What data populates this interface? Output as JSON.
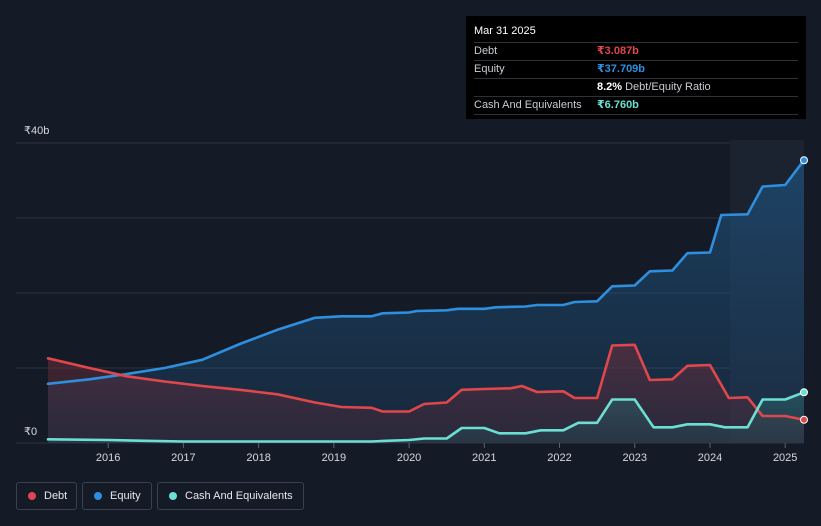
{
  "tooltip": {
    "date": "Mar 31 2025",
    "rows": [
      {
        "label": "Debt",
        "value": "₹3.087b",
        "color": "#e0474c"
      },
      {
        "label": "Equity",
        "value": "₹37.709b",
        "color": "#2f8fdf"
      },
      {
        "label": "",
        "value": "8.2%",
        "sub": "Debt/Equity Ratio",
        "color": "#ffffff"
      },
      {
        "label": "Cash And Equivalents",
        "value": "₹6.760b",
        "color": "#6be0d2"
      }
    ]
  },
  "legend": [
    {
      "label": "Debt",
      "color": "#e0474c"
    },
    {
      "label": "Equity",
      "color": "#2f8fdf"
    },
    {
      "label": "Cash And Equivalents",
      "color": "#6be0d2"
    }
  ],
  "chart_data": {
    "type": "area",
    "y_tick_labels": [
      "₹40b",
      "₹0"
    ],
    "y_tick_values": [
      40,
      0
    ],
    "ylim": [
      0,
      40
    ],
    "xlim": [
      2015.2,
      2025.25
    ],
    "x_ticks": [
      "2016",
      "2017",
      "2018",
      "2019",
      "2020",
      "2021",
      "2022",
      "2023",
      "2024",
      "2025"
    ],
    "x_tick_values": [
      2016,
      2017,
      2018,
      2019,
      2020,
      2021,
      2022,
      2023,
      2024,
      2025
    ],
    "grid": true,
    "legend_position": "bottom-left",
    "series": [
      {
        "name": "Equity",
        "color": "#2f8fdf",
        "points": [
          [
            2015.2,
            7.9
          ],
          [
            2015.75,
            8.5
          ],
          [
            2016.25,
            9.2
          ],
          [
            2016.75,
            10.0
          ],
          [
            2017.25,
            11.1
          ],
          [
            2017.75,
            13.2
          ],
          [
            2018.25,
            15.1
          ],
          [
            2018.75,
            16.7
          ],
          [
            2019.1,
            16.9
          ],
          [
            2019.5,
            16.9
          ],
          [
            2019.65,
            17.3
          ],
          [
            2020.0,
            17.4
          ],
          [
            2020.1,
            17.6
          ],
          [
            2020.5,
            17.7
          ],
          [
            2020.65,
            17.9
          ],
          [
            2021.0,
            17.9
          ],
          [
            2021.15,
            18.1
          ],
          [
            2021.55,
            18.2
          ],
          [
            2021.7,
            18.4
          ],
          [
            2022.05,
            18.4
          ],
          [
            2022.2,
            18.8
          ],
          [
            2022.5,
            18.9
          ],
          [
            2022.7,
            20.9
          ],
          [
            2023.0,
            21.0
          ],
          [
            2023.2,
            22.9
          ],
          [
            2023.5,
            23.0
          ],
          [
            2023.7,
            25.3
          ],
          [
            2024.0,
            25.4
          ],
          [
            2024.15,
            30.4
          ],
          [
            2024.5,
            30.5
          ],
          [
            2024.7,
            34.2
          ],
          [
            2025.0,
            34.4
          ],
          [
            2025.25,
            37.7
          ]
        ]
      },
      {
        "name": "Debt",
        "color": "#e0474c",
        "points": [
          [
            2015.2,
            11.3
          ],
          [
            2015.75,
            10.0
          ],
          [
            2016.25,
            8.9
          ],
          [
            2016.75,
            8.2
          ],
          [
            2017.25,
            7.6
          ],
          [
            2017.75,
            7.1
          ],
          [
            2018.25,
            6.5
          ],
          [
            2018.75,
            5.4
          ],
          [
            2019.1,
            4.8
          ],
          [
            2019.5,
            4.7
          ],
          [
            2019.65,
            4.2
          ],
          [
            2020.0,
            4.2
          ],
          [
            2020.2,
            5.2
          ],
          [
            2020.5,
            5.4
          ],
          [
            2020.7,
            7.1
          ],
          [
            2021.0,
            7.2
          ],
          [
            2021.35,
            7.3
          ],
          [
            2021.5,
            7.6
          ],
          [
            2021.7,
            6.8
          ],
          [
            2022.05,
            6.9
          ],
          [
            2022.2,
            6.0
          ],
          [
            2022.5,
            6.0
          ],
          [
            2022.7,
            13.0
          ],
          [
            2023.0,
            13.1
          ],
          [
            2023.2,
            8.4
          ],
          [
            2023.5,
            8.5
          ],
          [
            2023.7,
            10.3
          ],
          [
            2024.0,
            10.4
          ],
          [
            2024.25,
            6.0
          ],
          [
            2024.5,
            6.1
          ],
          [
            2024.7,
            3.6
          ],
          [
            2025.0,
            3.6
          ],
          [
            2025.25,
            3.1
          ]
        ]
      },
      {
        "name": "Cash And Equivalents",
        "color": "#6be0d2",
        "points": [
          [
            2015.2,
            0.5
          ],
          [
            2016.0,
            0.4
          ],
          [
            2016.5,
            0.3
          ],
          [
            2017.0,
            0.2
          ],
          [
            2018.0,
            0.2
          ],
          [
            2019.0,
            0.2
          ],
          [
            2019.5,
            0.2
          ],
          [
            2019.7,
            0.3
          ],
          [
            2020.0,
            0.4
          ],
          [
            2020.2,
            0.6
          ],
          [
            2020.5,
            0.6
          ],
          [
            2020.7,
            2.0
          ],
          [
            2021.0,
            2.0
          ],
          [
            2021.2,
            1.3
          ],
          [
            2021.55,
            1.3
          ],
          [
            2021.75,
            1.7
          ],
          [
            2022.05,
            1.7
          ],
          [
            2022.25,
            2.7
          ],
          [
            2022.5,
            2.7
          ],
          [
            2022.7,
            5.8
          ],
          [
            2023.0,
            5.8
          ],
          [
            2023.25,
            2.1
          ],
          [
            2023.5,
            2.1
          ],
          [
            2023.7,
            2.5
          ],
          [
            2024.0,
            2.5
          ],
          [
            2024.2,
            2.1
          ],
          [
            2024.5,
            2.1
          ],
          [
            2024.7,
            5.8
          ],
          [
            2025.0,
            5.8
          ],
          [
            2025.25,
            6.76
          ]
        ]
      }
    ]
  }
}
